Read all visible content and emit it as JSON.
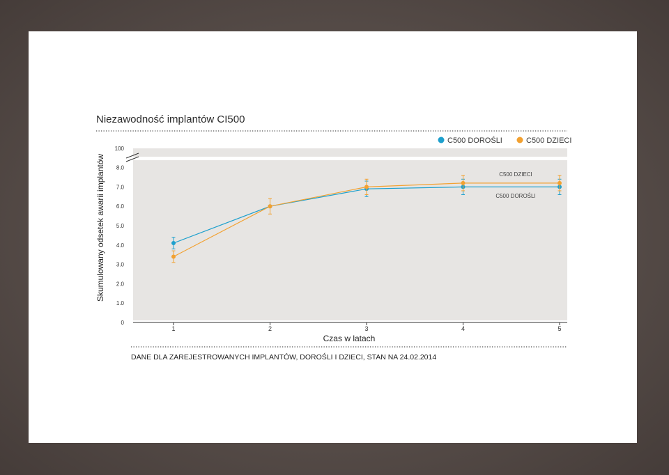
{
  "chart_data": {
    "type": "line",
    "title": "Niezawodność implantów CI500",
    "xlabel": "Czas w latach",
    "ylabel": "Skumulowany odsetek awarii implantów",
    "x": [
      1,
      2,
      3,
      4,
      5
    ],
    "x_ticks": [
      "1",
      "2",
      "3",
      "4",
      "5"
    ],
    "y_ticks": [
      "100",
      "8.0",
      "7.0",
      "6.0",
      "5.0",
      "4.0",
      "3.0",
      "2.0",
      "1.0",
      "0"
    ],
    "ylim": [
      0,
      8.5
    ],
    "axis_break": true,
    "grid": false,
    "legend_position": "top-right",
    "series": [
      {
        "name": "C500 DOROŚLI",
        "color": "#1ea0cd",
        "values": [
          4.1,
          6.0,
          6.9,
          7.0,
          7.0
        ],
        "err_low": [
          3.8,
          6.0,
          6.5,
          6.6,
          6.6
        ],
        "err_high": [
          4.4,
          6.0,
          7.3,
          7.4,
          7.4
        ]
      },
      {
        "name": "C500 DZIECI",
        "color": "#f2a131",
        "values": [
          3.4,
          6.0,
          7.0,
          7.2,
          7.2
        ],
        "err_low": [
          3.1,
          5.6,
          6.6,
          6.8,
          6.8
        ],
        "err_high": [
          3.7,
          6.4,
          7.4,
          7.6,
          7.6
        ]
      }
    ],
    "annotations": [
      "C500 DZIECI",
      "C500 DOROŚLI"
    ],
    "footnote": "DANE DLA ZAREJESTROWANYCH IMPLANTÓW, DOROŚLI I DZIECI, STAN NA 24.02.2014"
  }
}
